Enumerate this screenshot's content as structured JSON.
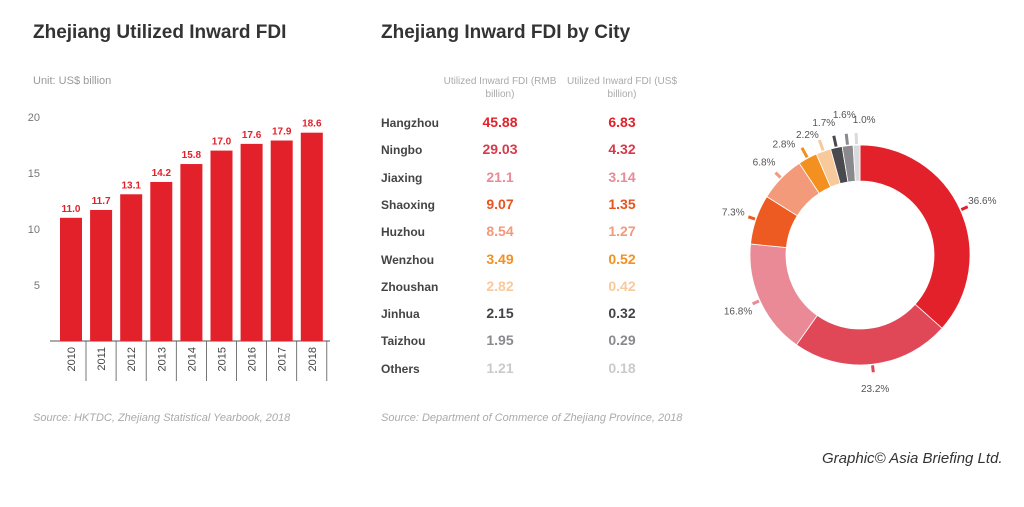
{
  "left": {
    "title": "Zhejiang Utilized Inward FDI",
    "unit": "Unit: US$ billion",
    "source": "Source: HKTDC, Zhejiang Statistical Yearbook, 2018"
  },
  "middle": {
    "title": "Zhejiang Inward FDI by City",
    "col1": "Utilized Inward FDI (RMB billion)",
    "col2": "Utilized Inward FDI (US$ billion)",
    "source": "Source: Department of Commerce of Zhejiang Province, 2018",
    "rows": [
      {
        "city": "Hangzhou",
        "rmb": "45.88",
        "usd": "6.83",
        "color": "#e3212a"
      },
      {
        "city": "Ningbo",
        "rmb": "29.03",
        "usd": "4.32",
        "color": "#d8394a"
      },
      {
        "city": "Jiaxing",
        "rmb": "21.1",
        "usd": "3.14",
        "color": "#e98a96"
      },
      {
        "city": "Shaoxing",
        "rmb": "9.07",
        "usd": "1.35",
        "color": "#e8531f"
      },
      {
        "city": "Huzhou",
        "rmb": "8.54",
        "usd": "1.27",
        "color": "#f29a7a"
      },
      {
        "city": "Wenzhou",
        "rmb": "3.49",
        "usd": "0.52",
        "color": "#f39020"
      },
      {
        "city": "Zhoushan",
        "rmb": "2.82",
        "usd": "0.42",
        "color": "#f8c99a"
      },
      {
        "city": "Jinhua",
        "rmb": "2.15",
        "usd": "0.32",
        "color": "#444448"
      },
      {
        "city": "Taizhou",
        "rmb": "1.95",
        "usd": "0.29",
        "color": "#8a8a8e"
      },
      {
        "city": "Others",
        "rmb": "1.21",
        "usd": "0.18",
        "color": "#c8cacc"
      }
    ]
  },
  "credit": "Graphic© Asia Briefing Ltd.",
  "chart_data": [
    {
      "type": "bar",
      "title": "Zhejiang Utilized Inward FDI",
      "ylabel": "Unit: US$ billion",
      "categories": [
        "2010",
        "2011",
        "2012",
        "2013",
        "2014",
        "2015",
        "2016",
        "2017",
        "2018"
      ],
      "values": [
        11.0,
        11.7,
        13.1,
        14.2,
        15.8,
        17.0,
        17.6,
        17.9,
        18.6
      ],
      "data_labels": [
        "11.0",
        "11.7",
        "13.1",
        "14.2",
        "15.8",
        "17.0",
        "17.6",
        "17.9",
        "18.6"
      ],
      "yticks": [
        "5",
        "10",
        "15",
        "20"
      ],
      "ylim": [
        0,
        20
      ],
      "color": "#e3212a",
      "grid": false
    },
    {
      "type": "pie",
      "donut": true,
      "categories": [
        "Hangzhou",
        "Ningbo",
        "Jiaxing",
        "Shaoxing",
        "Huzhou",
        "Wenzhou",
        "Zhoushan",
        "Jinhua",
        "Taizhou",
        "Others"
      ],
      "values": [
        36.6,
        23.2,
        16.8,
        7.3,
        6.8,
        2.8,
        2.2,
        1.7,
        1.6,
        1.0
      ],
      "labels": [
        "36.6%",
        "23.2%",
        "16.8%",
        "7.3%",
        "6.8%",
        "2.8%",
        "2.2%",
        "1.7%",
        "1.6%",
        "1.0%"
      ],
      "colors": [
        "#e3212a",
        "#e04858",
        "#e98a96",
        "#ed5a22",
        "#f29a7a",
        "#f39020",
        "#f8c99a",
        "#4a4a4e",
        "#8a8a8e",
        "#d8dadc"
      ]
    }
  ]
}
